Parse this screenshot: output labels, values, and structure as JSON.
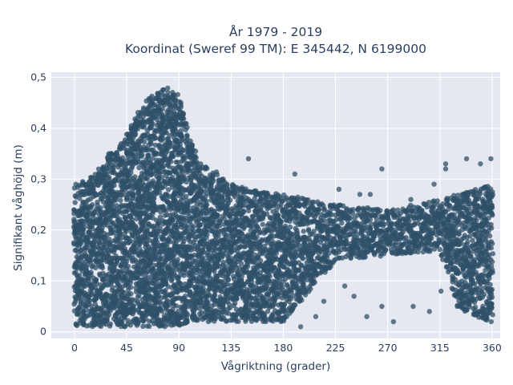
{
  "chart_data": {
    "type": "scatter",
    "title_line1": "År 1979 - 2019",
    "title_line2": "Koordinat (Sweref 99 TM): E 345442, N 6199000",
    "xlabel": "Vågriktning (grader)",
    "ylabel": "Signifikant våghöjd (m)",
    "xlim": [
      -20,
      367
    ],
    "ylim": [
      -0.013,
      0.51
    ],
    "x_ticks": [
      0,
      45,
      90,
      135,
      180,
      225,
      270,
      315,
      360
    ],
    "x_tick_labels": [
      "0",
      "45",
      "90",
      "135",
      "180",
      "225",
      "270",
      "315",
      "360"
    ],
    "y_ticks": [
      0,
      0.1,
      0.2,
      0.3,
      0.4,
      0.5
    ],
    "y_tick_labels": [
      "0",
      "0,1",
      "0,2",
      "0,3",
      "0,4",
      "0,5"
    ],
    "grid": true,
    "marker_color": "#2f5068",
    "plot_background": "#e5e8f0",
    "envelope": {
      "description_points": [
        {
          "x": 0,
          "y_min": 0.01,
          "y_max": 0.29
        },
        {
          "x": 10,
          "y_min": 0.01,
          "y_max": 0.3
        },
        {
          "x": 20,
          "y_min": 0.01,
          "y_max": 0.32
        },
        {
          "x": 30,
          "y_min": 0.01,
          "y_max": 0.35
        },
        {
          "x": 40,
          "y_min": 0.01,
          "y_max": 0.37
        },
        {
          "x": 50,
          "y_min": 0.01,
          "y_max": 0.41
        },
        {
          "x": 60,
          "y_min": 0.01,
          "y_max": 0.45
        },
        {
          "x": 70,
          "y_min": 0.01,
          "y_max": 0.47
        },
        {
          "x": 80,
          "y_min": 0.01,
          "y_max": 0.48
        },
        {
          "x": 90,
          "y_min": 0.01,
          "y_max": 0.47
        },
        {
          "x": 100,
          "y_min": 0.02,
          "y_max": 0.38
        },
        {
          "x": 110,
          "y_min": 0.02,
          "y_max": 0.33
        },
        {
          "x": 120,
          "y_min": 0.02,
          "y_max": 0.32
        },
        {
          "x": 135,
          "y_min": 0.02,
          "y_max": 0.29
        },
        {
          "x": 150,
          "y_min": 0.02,
          "y_max": 0.28
        },
        {
          "x": 180,
          "y_min": 0.02,
          "y_max": 0.27
        },
        {
          "x": 225,
          "y_min": 0.14,
          "y_max": 0.25
        },
        {
          "x": 270,
          "y_min": 0.15,
          "y_max": 0.24
        },
        {
          "x": 315,
          "y_min": 0.16,
          "y_max": 0.26
        },
        {
          "x": 330,
          "y_min": 0.05,
          "y_max": 0.27
        },
        {
          "x": 345,
          "y_min": 0.03,
          "y_max": 0.28
        },
        {
          "x": 360,
          "y_min": 0.02,
          "y_max": 0.29
        }
      ]
    },
    "outliers": [
      {
        "x": 150,
        "y": 0.34
      },
      {
        "x": 190,
        "y": 0.31
      },
      {
        "x": 265,
        "y": 0.32
      },
      {
        "x": 320,
        "y": 0.33
      },
      {
        "x": 320,
        "y": 0.32
      },
      {
        "x": 338,
        "y": 0.34
      },
      {
        "x": 350,
        "y": 0.33
      },
      {
        "x": 359,
        "y": 0.34
      },
      {
        "x": 292,
        "y": 0.05
      },
      {
        "x": 330,
        "y": 0.05
      },
      {
        "x": 306,
        "y": 0.04
      },
      {
        "x": 265,
        "y": 0.05
      },
      {
        "x": 215,
        "y": 0.06
      },
      {
        "x": 241,
        "y": 0.07
      },
      {
        "x": 195,
        "y": 0.01
      },
      {
        "x": 208,
        "y": 0.03
      },
      {
        "x": 252,
        "y": 0.03
      },
      {
        "x": 275,
        "y": 0.02
      },
      {
        "x": 316,
        "y": 0.08
      },
      {
        "x": 233,
        "y": 0.09
      },
      {
        "x": 228,
        "y": 0.28
      },
      {
        "x": 246,
        "y": 0.27
      },
      {
        "x": 255,
        "y": 0.27
      },
      {
        "x": 290,
        "y": 0.26
      },
      {
        "x": 303,
        "y": 0.25
      },
      {
        "x": 310,
        "y": 0.29
      }
    ]
  }
}
